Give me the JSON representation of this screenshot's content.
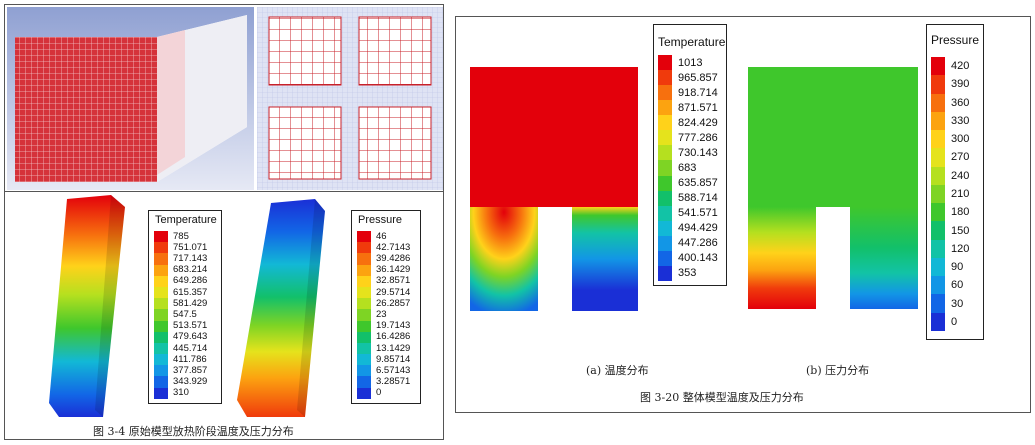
{
  "left_panel": {
    "caption": "图 3-4  原始模型放热阶段温度及压力分布",
    "temperature_legend": {
      "title": "Temperature",
      "ticks": [
        "785",
        "751.071",
        "717.143",
        "683.214",
        "649.286",
        "615.357",
        "581.429",
        "547.5",
        "513.571",
        "479.643",
        "445.714",
        "411.786",
        "377.857",
        "343.929",
        "310"
      ]
    },
    "pressure_legend": {
      "title": "Pressure",
      "ticks": [
        "46",
        "42.7143",
        "39.4286",
        "36.1429",
        "32.8571",
        "29.5714",
        "26.2857",
        "23",
        "19.7143",
        "16.4286",
        "13.1429",
        "9.85714",
        "6.57143",
        "3.28571",
        "0"
      ]
    }
  },
  "right_panel": {
    "caption_a": "(a)  温度分布",
    "caption_b": "(b)  压力分布",
    "caption_main": "图 3-20  整体模型温度及压力分布",
    "temperature_legend": {
      "title": "Temperature",
      "ticks": [
        "1013",
        "965.857",
        "918.714",
        "871.571",
        "824.429",
        "777.286",
        "730.143",
        "683",
        "635.857",
        "588.714",
        "541.571",
        "494.429",
        "447.286",
        "400.143",
        "353"
      ]
    },
    "pressure_legend": {
      "title": "Pressure",
      "ticks": [
        "420",
        "390",
        "360",
        "330",
        "300",
        "270",
        "240",
        "210",
        "180",
        "150",
        "120",
        "90",
        "60",
        "30",
        "0"
      ]
    }
  },
  "colormap": [
    "#e3000b",
    "#f03a0c",
    "#f7700e",
    "#fca310",
    "#ffd21a",
    "#e5e31c",
    "#b5e01f",
    "#7ed424",
    "#3fc72c",
    "#12c06a",
    "#12c3a6",
    "#12b8d6",
    "#1296e6",
    "#1266e6",
    "#1a2fd6"
  ]
}
